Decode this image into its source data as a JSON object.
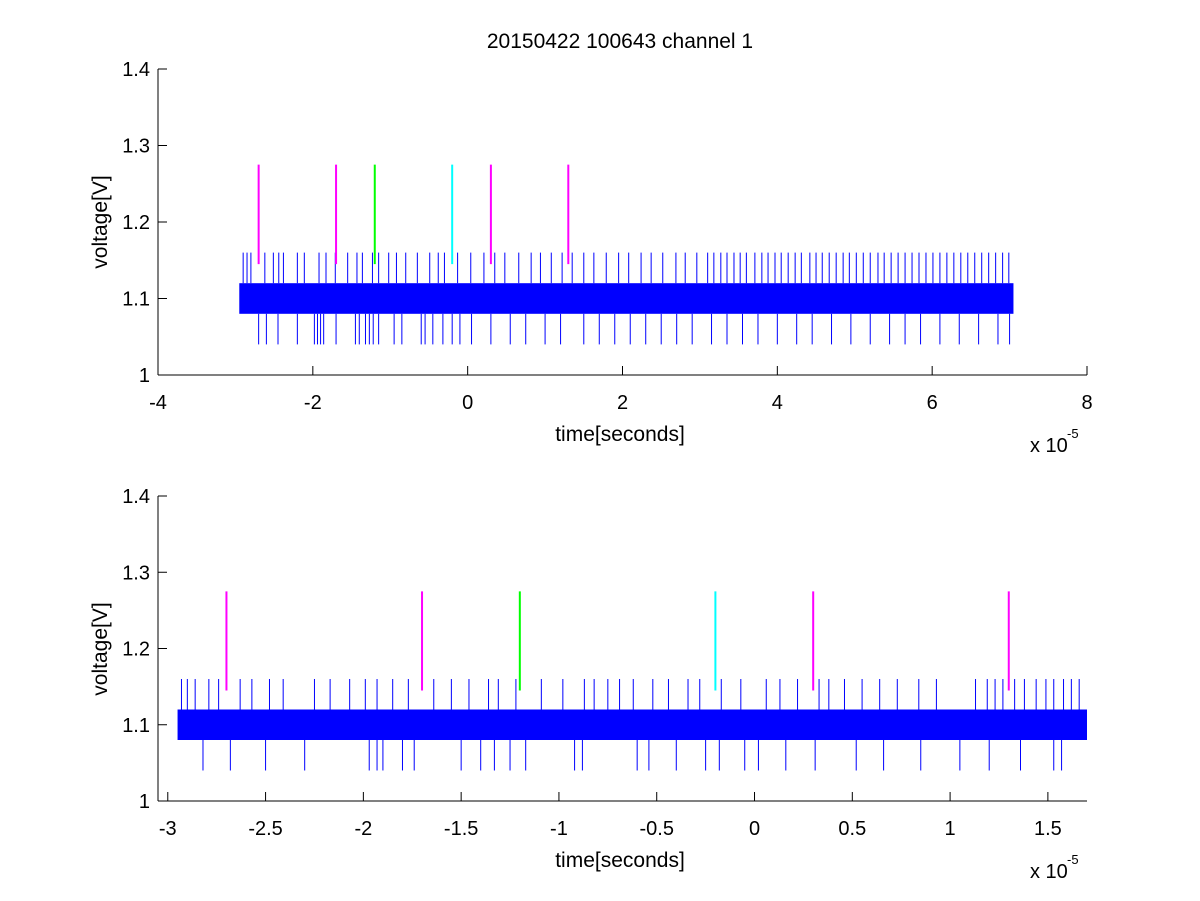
{
  "chart_data": [
    {
      "type": "line",
      "title": "20150422 100643 channel 1",
      "xlabel": "time[seconds]",
      "ylabel": "voltage[V]",
      "x_exponent_label": "x 10",
      "x_exponent_power": "-5",
      "xlim": [
        -4,
        8
      ],
      "ylim": [
        1.0,
        1.4
      ],
      "xticks": [
        -4,
        -2,
        0,
        2,
        4,
        6,
        8
      ],
      "xtick_labels": [
        "-4",
        "-2",
        "0",
        "2",
        "4",
        "6",
        "8"
      ],
      "yticks": [
        1.0,
        1.1,
        1.2,
        1.3,
        1.4
      ],
      "ytick_labels": [
        "1",
        "1.1",
        "1.2",
        "1.3",
        "1.4"
      ],
      "grid": false,
      "colors": {
        "signal": "#0000ff",
        "magenta": "#ff00ff",
        "green": "#00ff00",
        "cyan": "#00ffff"
      },
      "signal": {
        "x_range": [
          -2.95,
          7.05
        ],
        "levels": [
          1.04,
          1.08,
          1.12,
          1.16
        ],
        "band": [
          1.08,
          1.12
        ],
        "upward_spike_times": [
          -2.9,
          -2.85,
          -2.8,
          -2.62,
          -2.51,
          -2.44,
          -2.38,
          -2.2,
          -2.11,
          -1.92,
          -1.83,
          -1.71,
          -1.55,
          -1.43,
          -1.36,
          -1.23,
          -1.15,
          -1.02,
          -0.92,
          -0.8,
          -0.65,
          -0.49,
          -0.38,
          -0.3,
          -0.13,
          0.04,
          0.21,
          0.35,
          0.48,
          0.66,
          0.82,
          0.94,
          1.08,
          1.22,
          1.35,
          1.5,
          1.63,
          1.79,
          1.95,
          2.08,
          2.24,
          2.37,
          2.52,
          2.69,
          2.81,
          2.96,
          3.1,
          3.18,
          3.27,
          3.35,
          3.44,
          3.52,
          3.6,
          3.71,
          3.8,
          3.88,
          3.97,
          4.05,
          4.14,
          4.23,
          4.31,
          4.42,
          4.5,
          4.58,
          4.67,
          4.76,
          4.85,
          4.93,
          5.02,
          5.11,
          5.2,
          5.3,
          5.38,
          5.47,
          5.56,
          5.65,
          5.74,
          5.83,
          5.92,
          6.01,
          6.1,
          6.19,
          6.28,
          6.37,
          6.46,
          6.55,
          6.64,
          6.73,
          6.82,
          6.91,
          6.99
        ],
        "downward_spike_times": [
          -2.7,
          -2.6,
          -2.45,
          -2.2,
          -1.98,
          -1.94,
          -1.9,
          -1.86,
          -1.7,
          -1.45,
          -1.4,
          -1.32,
          -1.27,
          -1.22,
          -1.15,
          -0.95,
          -0.85,
          -0.6,
          -0.55,
          -0.45,
          -0.32,
          -0.2,
          -0.1,
          0.05,
          0.3,
          0.55,
          0.75,
          1.0,
          1.2,
          1.5,
          1.7,
          1.9,
          2.1,
          2.3,
          2.5,
          2.7,
          2.9,
          3.15,
          3.35,
          3.55,
          3.75,
          4.0,
          4.25,
          4.45,
          4.7,
          4.95,
          5.2,
          5.45,
          5.65,
          5.85,
          6.1,
          6.35,
          6.6,
          6.85,
          7.0
        ]
      },
      "markers": [
        {
          "x": -2.7,
          "y_range": [
            1.145,
            1.275
          ],
          "color": "magenta"
        },
        {
          "x": -1.7,
          "y_range": [
            1.145,
            1.275
          ],
          "color": "magenta"
        },
        {
          "x": -1.2,
          "y_range": [
            1.145,
            1.275
          ],
          "color": "green"
        },
        {
          "x": -0.2,
          "y_range": [
            1.145,
            1.275
          ],
          "color": "cyan"
        },
        {
          "x": 0.3,
          "y_range": [
            1.145,
            1.275
          ],
          "color": "magenta"
        },
        {
          "x": 1.3,
          "y_range": [
            1.145,
            1.275
          ],
          "color": "magenta"
        }
      ]
    },
    {
      "type": "line",
      "title": "",
      "xlabel": "time[seconds]",
      "ylabel": "voltage[V]",
      "x_exponent_label": "x 10",
      "x_exponent_power": "-5",
      "xlim": [
        -3.05,
        1.7
      ],
      "ylim": [
        1.0,
        1.4
      ],
      "xticks": [
        -3,
        -2.5,
        -2,
        -1.5,
        -1,
        -0.5,
        0,
        0.5,
        1,
        1.5
      ],
      "xtick_labels": [
        "-3",
        "-2.5",
        "-2",
        "-1.5",
        "-1",
        "-0.5",
        "0",
        "0.5",
        "1",
        "1.5"
      ],
      "yticks": [
        1.0,
        1.1,
        1.2,
        1.3,
        1.4
      ],
      "ytick_labels": [
        "1",
        "1.1",
        "1.2",
        "1.3",
        "1.4"
      ],
      "grid": false,
      "colors": {
        "signal": "#0000ff",
        "magenta": "#ff00ff",
        "green": "#00ff00",
        "cyan": "#00ffff"
      },
      "signal": {
        "x_range": [
          -2.95,
          1.7
        ],
        "levels": [
          1.04,
          1.08,
          1.12,
          1.16
        ],
        "band": [
          1.08,
          1.12
        ],
        "upward_spike_times": [
          -2.93,
          -2.9,
          -2.86,
          -2.79,
          -2.74,
          -2.63,
          -2.57,
          -2.48,
          -2.41,
          -2.25,
          -2.17,
          -2.07,
          -1.99,
          -1.93,
          -1.85,
          -1.77,
          -1.64,
          -1.55,
          -1.46,
          -1.36,
          -1.31,
          -1.22,
          -1.09,
          -0.98,
          -0.87,
          -0.82,
          -0.75,
          -0.69,
          -0.62,
          -0.52,
          -0.44,
          -0.34,
          -0.28,
          -0.17,
          -0.07,
          0.06,
          0.13,
          0.22,
          0.33,
          0.38,
          0.46,
          0.55,
          0.64,
          0.73,
          0.84,
          0.93,
          1.13,
          1.19,
          1.23,
          1.27,
          1.33,
          1.38,
          1.44,
          1.49,
          1.53,
          1.58,
          1.62,
          1.66
        ],
        "downward_spike_times": [
          -2.82,
          -2.68,
          -2.5,
          -2.3,
          -1.97,
          -1.93,
          -1.9,
          -1.8,
          -1.74,
          -1.5,
          -1.4,
          -1.33,
          -1.25,
          -1.17,
          -0.92,
          -0.88,
          -0.6,
          -0.54,
          -0.4,
          -0.25,
          -0.18,
          -0.05,
          0.02,
          0.16,
          0.31,
          0.52,
          0.66,
          0.85,
          1.05,
          1.2,
          1.36,
          1.53,
          1.57
        ]
      },
      "markers": [
        {
          "x": -2.7,
          "y_range": [
            1.145,
            1.275
          ],
          "color": "magenta"
        },
        {
          "x": -1.7,
          "y_range": [
            1.145,
            1.275
          ],
          "color": "magenta"
        },
        {
          "x": -1.2,
          "y_range": [
            1.145,
            1.275
          ],
          "color": "green"
        },
        {
          "x": -0.2,
          "y_range": [
            1.145,
            1.275
          ],
          "color": "cyan"
        },
        {
          "x": 0.3,
          "y_range": [
            1.145,
            1.275
          ],
          "color": "magenta"
        },
        {
          "x": 1.3,
          "y_range": [
            1.145,
            1.275
          ],
          "color": "magenta"
        }
      ]
    }
  ]
}
